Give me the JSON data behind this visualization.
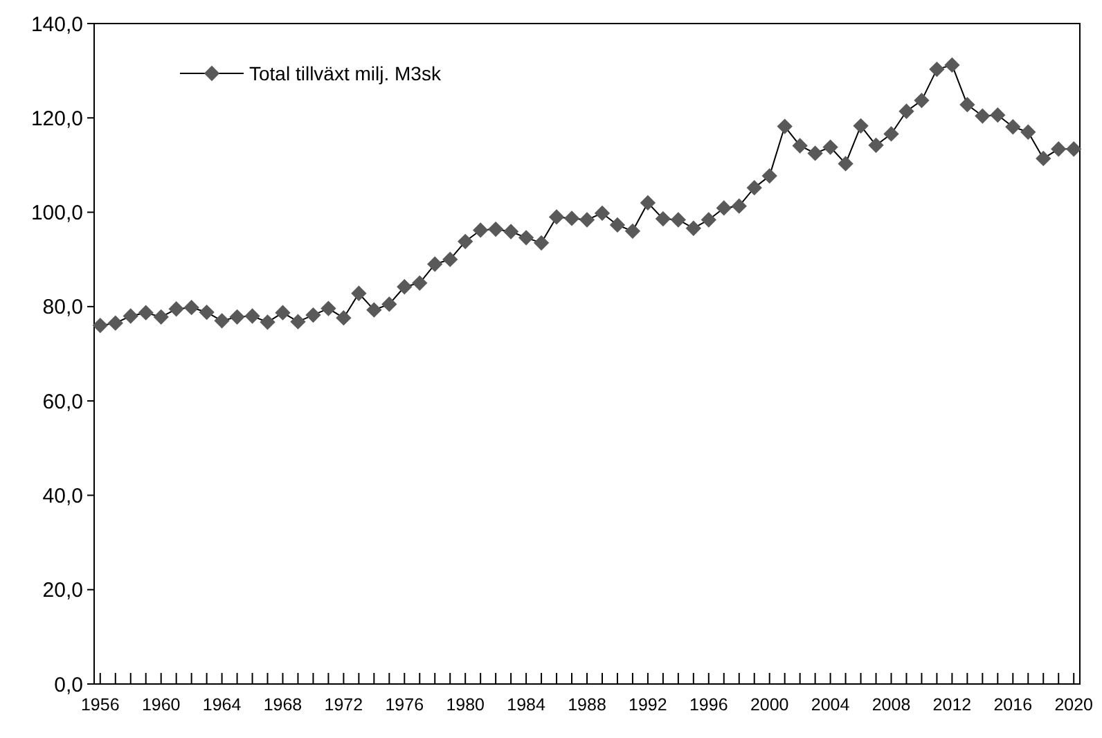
{
  "chart_data": {
    "type": "line",
    "x": [
      1956,
      1957,
      1958,
      1959,
      1960,
      1961,
      1962,
      1963,
      1964,
      1965,
      1966,
      1967,
      1968,
      1969,
      1970,
      1971,
      1972,
      1973,
      1974,
      1975,
      1976,
      1977,
      1978,
      1979,
      1980,
      1981,
      1982,
      1983,
      1984,
      1985,
      1986,
      1987,
      1988,
      1989,
      1990,
      1991,
      1992,
      1993,
      1994,
      1995,
      1996,
      1997,
      1998,
      1999,
      2000,
      2001,
      2002,
      2003,
      2004,
      2005,
      2006,
      2007,
      2008,
      2009,
      2010,
      2011,
      2012,
      2013,
      2014,
      2015,
      2016,
      2017,
      2018,
      2019,
      2020
    ],
    "series": [
      {
        "name": "Total tillväxt milj. M3sk",
        "color": "#595959",
        "values": [
          76,
          76.5,
          78,
          78.7,
          77.8,
          79.5,
          79.8,
          78.8,
          77,
          77.8,
          78,
          76.7,
          78.7,
          76.8,
          78.2,
          79.6,
          77.6,
          82.8,
          79.3,
          80.5,
          84.2,
          85,
          89,
          90,
          93.8,
          96.2,
          96.4,
          95.9,
          94.6,
          93.5,
          99,
          98.7,
          98.4,
          99.8,
          97.3,
          96,
          102,
          98.6,
          98.4,
          96.6,
          98.4,
          100.9,
          101.3,
          105.2,
          107.7,
          118.2,
          114.1,
          112.5,
          113.8,
          110.3,
          118.3,
          114.2,
          116.6,
          121.4,
          123.7,
          130.3,
          131.2,
          122.8,
          120.4,
          120.6,
          118.1,
          117,
          111.4,
          113.4,
          113.4
        ]
      }
    ],
    "xlim": [
      1955.6,
      2020.4
    ],
    "xticks": [
      {
        "value": 1956,
        "label": "1956"
      },
      {
        "value": 1957,
        "label": null
      },
      {
        "value": 1958,
        "label": null
      },
      {
        "value": 1959,
        "label": null
      },
      {
        "value": 1960,
        "label": "1960"
      },
      {
        "value": 1961,
        "label": null
      },
      {
        "value": 1962,
        "label": null
      },
      {
        "value": 1963,
        "label": null
      },
      {
        "value": 1964,
        "label": "1964"
      },
      {
        "value": 1965,
        "label": null
      },
      {
        "value": 1966,
        "label": null
      },
      {
        "value": 1967,
        "label": null
      },
      {
        "value": 1968,
        "label": "1968"
      },
      {
        "value": 1969,
        "label": null
      },
      {
        "value": 1970,
        "label": null
      },
      {
        "value": 1971,
        "label": null
      },
      {
        "value": 1972,
        "label": "1972"
      },
      {
        "value": 1973,
        "label": null
      },
      {
        "value": 1974,
        "label": null
      },
      {
        "value": 1975,
        "label": null
      },
      {
        "value": 1976,
        "label": "1976"
      },
      {
        "value": 1977,
        "label": null
      },
      {
        "value": 1978,
        "label": null
      },
      {
        "value": 1979,
        "label": null
      },
      {
        "value": 1980,
        "label": "1980"
      },
      {
        "value": 1981,
        "label": null
      },
      {
        "value": 1982,
        "label": null
      },
      {
        "value": 1983,
        "label": null
      },
      {
        "value": 1984,
        "label": "1984"
      },
      {
        "value": 1985,
        "label": null
      },
      {
        "value": 1986,
        "label": null
      },
      {
        "value": 1987,
        "label": null
      },
      {
        "value": 1988,
        "label": "1988"
      },
      {
        "value": 1989,
        "label": null
      },
      {
        "value": 1990,
        "label": null
      },
      {
        "value": 1991,
        "label": null
      },
      {
        "value": 1992,
        "label": "1992"
      },
      {
        "value": 1993,
        "label": null
      },
      {
        "value": 1994,
        "label": null
      },
      {
        "value": 1995,
        "label": null
      },
      {
        "value": 1996,
        "label": "1996"
      },
      {
        "value": 1997,
        "label": null
      },
      {
        "value": 1998,
        "label": null
      },
      {
        "value": 1999,
        "label": null
      },
      {
        "value": 2000,
        "label": "2000"
      },
      {
        "value": 2001,
        "label": null
      },
      {
        "value": 2002,
        "label": null
      },
      {
        "value": 2003,
        "label": null
      },
      {
        "value": 2004,
        "label": "2004"
      },
      {
        "value": 2005,
        "label": null
      },
      {
        "value": 2006,
        "label": null
      },
      {
        "value": 2007,
        "label": null
      },
      {
        "value": 2008,
        "label": "2008"
      },
      {
        "value": 2009,
        "label": null
      },
      {
        "value": 2010,
        "label": null
      },
      {
        "value": 2011,
        "label": null
      },
      {
        "value": 2012,
        "label": "2012"
      },
      {
        "value": 2013,
        "label": null
      },
      {
        "value": 2014,
        "label": null
      },
      {
        "value": 2015,
        "label": null
      },
      {
        "value": 2016,
        "label": "2016"
      },
      {
        "value": 2017,
        "label": null
      },
      {
        "value": 2018,
        "label": null
      },
      {
        "value": 2019,
        "label": null
      },
      {
        "value": 2020,
        "label": "2020"
      }
    ],
    "ylim": [
      0,
      140
    ],
    "yticks": [
      {
        "value": 0,
        "label": "0,0"
      },
      {
        "value": 20,
        "label": "20,0"
      },
      {
        "value": 40,
        "label": "40,0"
      },
      {
        "value": 60,
        "label": "60,0"
      },
      {
        "value": 80,
        "label": "80,0"
      },
      {
        "value": 100,
        "label": "100,0"
      },
      {
        "value": 120,
        "label": "120,0"
      },
      {
        "value": 140,
        "label": "140,0"
      }
    ],
    "grid": false,
    "legend": "top left",
    "marker": "diamond",
    "line_style": "solid"
  }
}
